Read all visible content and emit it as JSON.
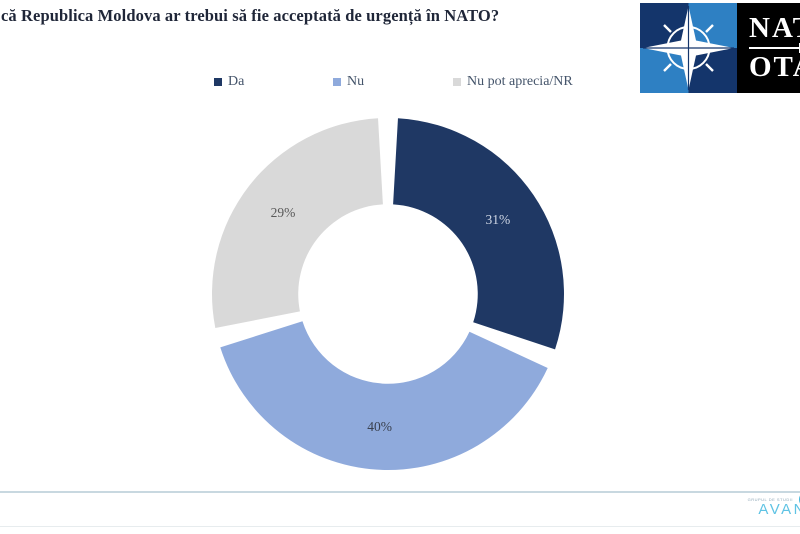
{
  "title": "că Republica Moldova ar trebui să fie acceptată de urgență în NATO?",
  "legend": [
    {
      "label": "Da",
      "color": "#1F3864"
    },
    {
      "label": "Nu",
      "color": "#8FAADC"
    },
    {
      "label": "Nu pot aprecia/NR",
      "color": "#D9D9D9"
    }
  ],
  "chart_data": {
    "type": "pie",
    "subtype": "donut",
    "title": "că Republica Moldova ar trebui să fie acceptată de urgență în NATO?",
    "categories": [
      "Da",
      "Nu",
      "Nu pot aprecia/NR"
    ],
    "values": [
      31,
      40,
      29
    ],
    "data_labels": [
      "31%",
      "40%",
      "29%"
    ],
    "colors": [
      "#1F3864",
      "#8FAADC",
      "#D9D9D9"
    ],
    "label_colors": [
      "#CDD5E3",
      "#39404F",
      "#595959"
    ],
    "legend_position": "top",
    "start_angle_deg": 0,
    "slice_gap_deg": 6.5,
    "donut_hole_ratio": 0.51
  },
  "nato_logo": {
    "line1": "NATO",
    "line2": "OTAN",
    "dark_blue": "#14356B",
    "light_blue": "#2E80C3"
  },
  "footer": {
    "tagline": "GRUPUL DE STUDII",
    "brand_visible": "AVAN"
  }
}
